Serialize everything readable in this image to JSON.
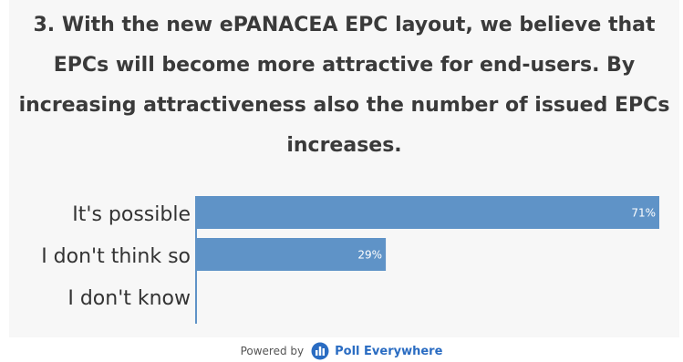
{
  "chart_data": {
    "type": "bar",
    "orientation": "horizontal",
    "title": "3. With the new ePANACEA EPC layout, we believe that EPCs will become more attractive for end-users. By increasing attractiveness also the number of issued EPCs increases.",
    "title_lines": [
      "3. With the new ePANACEA EPC layout, we believe that",
      "EPCs will become more attractive for end-users. By",
      "increasing attractiveness also the number of issued EPCs",
      "increases."
    ],
    "categories": [
      "It's possible",
      "I don't think so",
      "I don't know"
    ],
    "values": [
      71,
      29,
      0
    ],
    "value_labels": [
      "71%",
      "29%",
      ""
    ],
    "unit": "%",
    "xlim": [
      0,
      71
    ],
    "grid": false,
    "bar_color": "#5f93c7"
  },
  "footer": {
    "powered_by": "Powered by",
    "brand": "Poll Everywhere",
    "brand_color": "#2a6cc2"
  }
}
